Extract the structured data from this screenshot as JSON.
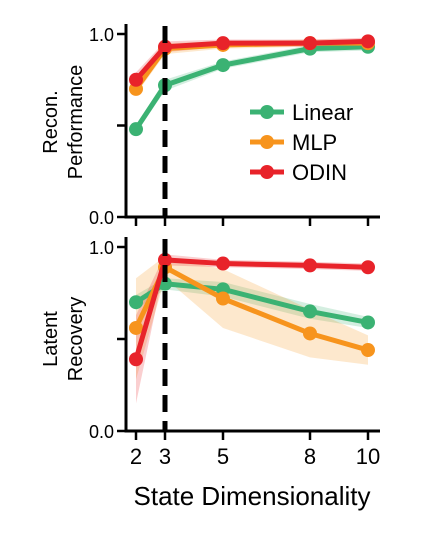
{
  "chart_data": [
    {
      "type": "line",
      "ylabel_lines": [
        "Recon.",
        "Performance"
      ],
      "ylim": [
        0,
        1
      ],
      "yticks": [
        {
          "value": 0,
          "label": "0.0"
        },
        {
          "value": 0.5,
          "label": ""
        },
        {
          "value": 1,
          "label": "1.0"
        }
      ],
      "x": [
        2,
        3,
        5,
        8,
        10
      ],
      "xlim": [
        2,
        10
      ],
      "reference_x": 3,
      "grid": false,
      "legend_placement": "right",
      "series": [
        {
          "name": "Linear",
          "color": "#3bb273",
          "values": [
            0.48,
            0.72,
            0.83,
            0.92,
            0.93
          ],
          "band": [
            0.02,
            0.03,
            0.02,
            0.02,
            0.02
          ]
        },
        {
          "name": "MLP",
          "color": "#f7941d",
          "values": [
            0.7,
            0.92,
            0.94,
            0.95,
            0.95
          ],
          "band": [
            0.03,
            0.03,
            0.02,
            0.02,
            0.02
          ]
        },
        {
          "name": "ODIN",
          "color": "#e8232a",
          "values": [
            0.75,
            0.93,
            0.95,
            0.95,
            0.96
          ],
          "band": [
            0.04,
            0.03,
            0.02,
            0.02,
            0.02
          ]
        }
      ]
    },
    {
      "type": "line",
      "ylabel_lines": [
        "Latent",
        "Recovery"
      ],
      "ylim": [
        0,
        1
      ],
      "yticks": [
        {
          "value": 0,
          "label": "0.0"
        },
        {
          "value": 0.5,
          "label": ""
        },
        {
          "value": 1,
          "label": "1.0"
        }
      ],
      "x": [
        2,
        3,
        5,
        8,
        10
      ],
      "xlim": [
        2,
        10
      ],
      "xticks": [
        2,
        3,
        5,
        8,
        10
      ],
      "xlabel": "State Dimensionality",
      "reference_x": 3,
      "grid": false,
      "series": [
        {
          "name": "Linear",
          "color": "#3bb273",
          "values": [
            0.7,
            0.8,
            0.77,
            0.65,
            0.59
          ],
          "lower": [
            0.66,
            0.77,
            0.73,
            0.61,
            0.56
          ],
          "upper": [
            0.74,
            0.83,
            0.81,
            0.69,
            0.62
          ]
        },
        {
          "name": "MLP",
          "color": "#f7941d",
          "values": [
            0.56,
            0.89,
            0.72,
            0.53,
            0.44
          ],
          "lower": [
            0.28,
            0.83,
            0.56,
            0.4,
            0.36
          ],
          "upper": [
            0.83,
            0.95,
            0.88,
            0.66,
            0.52
          ]
        },
        {
          "name": "ODIN",
          "color": "#e8232a",
          "values": [
            0.39,
            0.93,
            0.91,
            0.9,
            0.89
          ],
          "lower": [
            0.15,
            0.9,
            0.89,
            0.88,
            0.87
          ],
          "upper": [
            0.63,
            0.96,
            0.93,
            0.92,
            0.91
          ]
        }
      ]
    }
  ]
}
